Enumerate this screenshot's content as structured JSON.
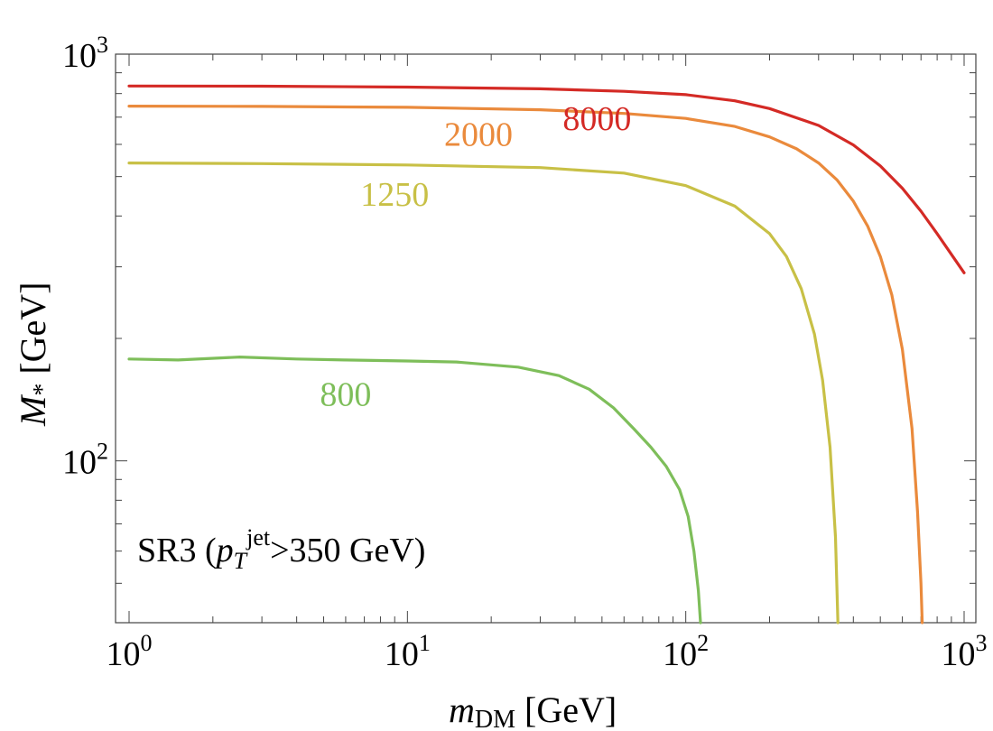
{
  "chart_data": {
    "type": "line",
    "xscale": "log",
    "yscale": "log",
    "xlim": [
      1,
      1000
    ],
    "ylim": [
      40,
      1000
    ],
    "xlabel": {
      "main": "m",
      "sub": "DM",
      "unit": " [GeV]"
    },
    "ylabel": {
      "main": "M",
      "sub": "*",
      "unit": " [GeV]"
    },
    "x_ticks": [
      {
        "base": "10",
        "exp": "0",
        "value": 1
      },
      {
        "base": "10",
        "exp": "1",
        "value": 10
      },
      {
        "base": "10",
        "exp": "2",
        "value": 100
      },
      {
        "base": "10",
        "exp": "3",
        "value": 1000
      }
    ],
    "y_ticks": [
      {
        "base": "10",
        "exp": "2",
        "value": 100
      },
      {
        "base": "10",
        "exp": "3",
        "value": 1000
      }
    ],
    "annotation": {
      "prefix": "SR3 (",
      "p": "p",
      "T": "T",
      "jet": "jet",
      "suffix": ">350 GeV)"
    },
    "series": [
      {
        "name": "8000",
        "color": "#d42a25",
        "x": [
          1,
          3,
          10,
          30,
          60,
          100,
          150,
          200,
          300,
          400,
          500,
          600,
          700,
          800,
          1000
        ],
        "y": [
          835,
          834,
          830,
          822,
          810,
          795,
          768,
          735,
          668,
          598,
          531,
          468,
          411,
          362,
          290
        ]
      },
      {
        "name": "2000",
        "color": "#ea8a3c",
        "x": [
          1,
          3,
          10,
          30,
          60,
          100,
          150,
          200,
          250,
          300,
          350,
          400,
          450,
          500,
          550,
          600,
          650,
          680,
          700,
          707
        ],
        "y": [
          745,
          744,
          740,
          730,
          715,
          695,
          664,
          626,
          585,
          540,
          490,
          435,
          378,
          318,
          256,
          188,
          120,
          75,
          50,
          40
        ]
      },
      {
        "name": "1250",
        "color": "#c8c046",
        "x": [
          1,
          3,
          10,
          30,
          60,
          100,
          150,
          200,
          230,
          260,
          290,
          310,
          330,
          345,
          352
        ],
        "y": [
          540,
          538,
          534,
          526,
          510,
          475,
          423,
          362,
          318,
          265,
          205,
          158,
          108,
          65,
          40
        ]
      },
      {
        "name": "800",
        "color": "#7ebe5a",
        "x": [
          1,
          1.5,
          2.5,
          4,
          6,
          10,
          15,
          25,
          35,
          45,
          55,
          65,
          75,
          85,
          95,
          102,
          107,
          111,
          113
        ],
        "y": [
          178,
          177,
          180,
          178,
          177,
          176,
          175,
          170,
          162,
          150,
          135,
          120,
          108,
          97,
          85,
          73,
          60,
          48,
          40
        ]
      }
    ],
    "series_labels": [
      {
        "text": "8000",
        "color": "#d42a25",
        "x": 48,
        "y": 700
      },
      {
        "text": "2000",
        "color": "#ea8a3c",
        "x": 18,
        "y": 640
      },
      {
        "text": "1250",
        "color": "#c8c046",
        "x": 9,
        "y": 455
      },
      {
        "text": "800",
        "color": "#7ebe5a",
        "x": 6,
        "y": 147
      }
    ]
  }
}
